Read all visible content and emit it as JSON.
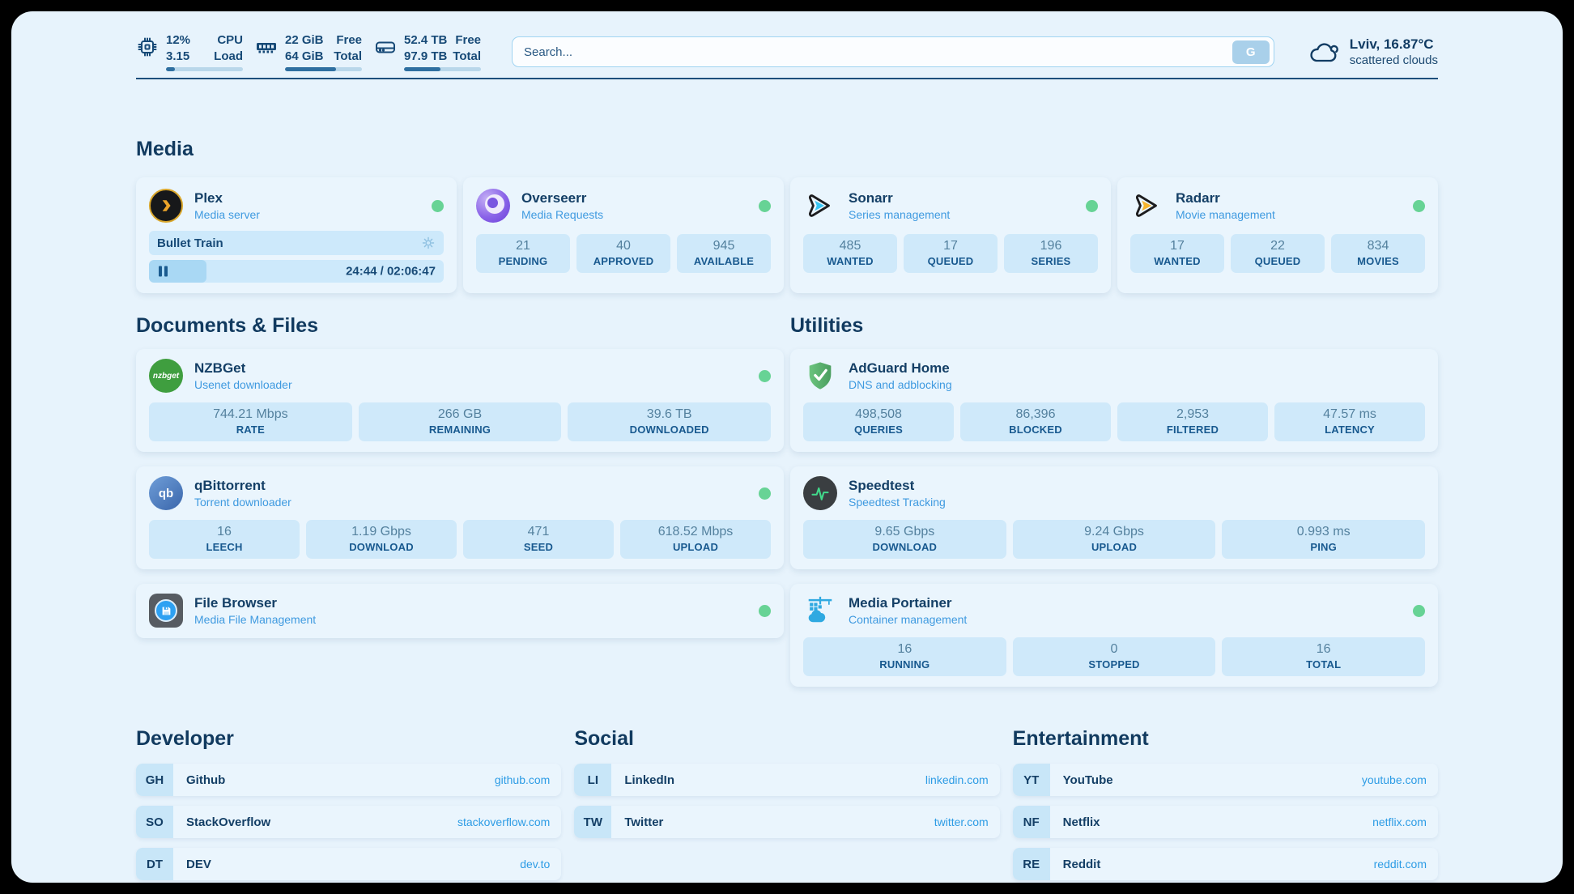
{
  "colors": {
    "page_background": "#e7f3fc",
    "card_background": "#eaf5fd",
    "stat_box_background": "#cfe9fa",
    "accent_dark_blue": "#143f66",
    "accent_light_blue": "#3f9ae0",
    "link_url_blue": "#2d9ce5",
    "status_online_green": "#67d395",
    "progress_fill": "#2f6fa0"
  },
  "header": {
    "system_stats": [
      {
        "id": "cpu",
        "value_top": "12%",
        "value_bottom": "3.15",
        "label_top": "CPU",
        "label_bottom": "Load",
        "progress_pct": 12
      },
      {
        "id": "memory",
        "value_top": "22 GiB",
        "value_bottom": "64 GiB",
        "label_top": "Free",
        "label_bottom": "Total",
        "progress_pct": 66
      },
      {
        "id": "storage",
        "value_top": "52.4 TB",
        "value_bottom": "97.9 TB",
        "label_top": "Free",
        "label_bottom": "Total",
        "progress_pct": 47
      }
    ],
    "search": {
      "placeholder": "Search...",
      "button_label": "G"
    },
    "weather": {
      "location_temperature": "Lviv, 16.87°C",
      "condition": "scattered clouds"
    }
  },
  "sections": {
    "media": {
      "title": "Media",
      "plex": {
        "name": "Plex",
        "subtitle": "Media server",
        "status": "online",
        "now_playing": "Bullet Train",
        "time_display": "24:44 / 02:06:47",
        "progress_pct": 19.5
      },
      "overseerr": {
        "name": "Overseerr",
        "subtitle": "Media Requests",
        "status": "online",
        "stats": [
          {
            "value": "21",
            "label": "PENDING"
          },
          {
            "value": "40",
            "label": "APPROVED"
          },
          {
            "value": "945",
            "label": "AVAILABLE"
          }
        ]
      },
      "sonarr": {
        "name": "Sonarr",
        "subtitle": "Series management",
        "status": "online",
        "stats": [
          {
            "value": "485",
            "label": "WANTED"
          },
          {
            "value": "17",
            "label": "QUEUED"
          },
          {
            "value": "196",
            "label": "SERIES"
          }
        ]
      },
      "radarr": {
        "name": "Radarr",
        "subtitle": "Movie management",
        "status": "online",
        "stats": [
          {
            "value": "17",
            "label": "WANTED"
          },
          {
            "value": "22",
            "label": "QUEUED"
          },
          {
            "value": "834",
            "label": "MOVIES"
          }
        ]
      }
    },
    "documents_files": {
      "title": "Documents & Files",
      "nzbget": {
        "name": "NZBGet",
        "subtitle": "Usenet downloader",
        "status": "online",
        "icon_text": "nzbget",
        "stats": [
          {
            "value": "744.21 Mbps",
            "label": "RATE"
          },
          {
            "value": "266 GB",
            "label": "REMAINING"
          },
          {
            "value": "39.6 TB",
            "label": "DOWNLOADED"
          }
        ]
      },
      "qbittorrent": {
        "name": "qBittorrent",
        "subtitle": "Torrent downloader",
        "status": "online",
        "icon_text": "qb",
        "stats": [
          {
            "value": "16",
            "label": "LEECH"
          },
          {
            "value": "1.19 Gbps",
            "label": "DOWNLOAD"
          },
          {
            "value": "471",
            "label": "SEED"
          },
          {
            "value": "618.52 Mbps",
            "label": "UPLOAD"
          }
        ]
      },
      "filebrowser": {
        "name": "File Browser",
        "subtitle": "Media File Management",
        "status": "online"
      }
    },
    "utilities": {
      "title": "Utilities",
      "adguard": {
        "name": "AdGuard Home",
        "subtitle": "DNS and adblocking",
        "stats": [
          {
            "value": "498,508",
            "label": "QUERIES"
          },
          {
            "value": "86,396",
            "label": "BLOCKED"
          },
          {
            "value": "2,953",
            "label": "FILTERED"
          },
          {
            "value": "47.57 ms",
            "label": "LATENCY"
          }
        ]
      },
      "speedtest": {
        "name": "Speedtest",
        "subtitle": "Speedtest Tracking",
        "stats": [
          {
            "value": "9.65 Gbps",
            "label": "DOWNLOAD"
          },
          {
            "value": "9.24 Gbps",
            "label": "UPLOAD"
          },
          {
            "value": "0.993 ms",
            "label": "PING"
          }
        ]
      },
      "portainer": {
        "name": "Media Portainer",
        "subtitle": "Container management",
        "status": "online",
        "stats": [
          {
            "value": "16",
            "label": "RUNNING"
          },
          {
            "value": "0",
            "label": "STOPPED"
          },
          {
            "value": "16",
            "label": "TOTAL"
          }
        ]
      }
    },
    "links": {
      "developer": {
        "title": "Developer",
        "items": [
          {
            "abbr": "GH",
            "name": "Github",
            "url": "github.com"
          },
          {
            "abbr": "SO",
            "name": "StackOverflow",
            "url": "stackoverflow.com"
          },
          {
            "abbr": "DT",
            "name": "DEV",
            "url": "dev.to"
          }
        ]
      },
      "social": {
        "title": "Social",
        "items": [
          {
            "abbr": "LI",
            "name": "LinkedIn",
            "url": "linkedin.com"
          },
          {
            "abbr": "TW",
            "name": "Twitter",
            "url": "twitter.com"
          }
        ]
      },
      "entertainment": {
        "title": "Entertainment",
        "items": [
          {
            "abbr": "YT",
            "name": "YouTube",
            "url": "youtube.com"
          },
          {
            "abbr": "NF",
            "name": "Netflix",
            "url": "netflix.com"
          },
          {
            "abbr": "RE",
            "name": "Reddit",
            "url": "reddit.com"
          }
        ]
      }
    }
  }
}
